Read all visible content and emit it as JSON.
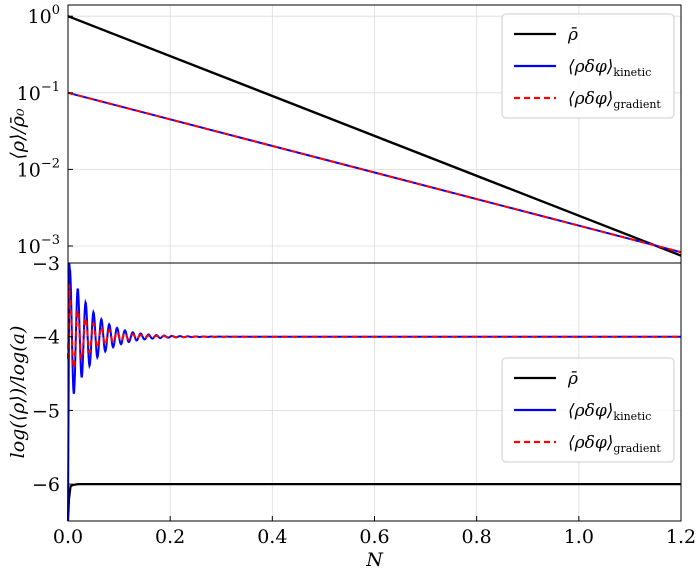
{
  "chart_data": [
    {
      "panel": "top",
      "type": "line",
      "ylabel": "⟨ρ⟩/ρ̄₀",
      "yscale": "log",
      "ylim": [
        0.0006,
        1.4
      ],
      "xlim": [
        0,
        1.2
      ],
      "yticks": [
        {
          "value": 1,
          "base": "10",
          "exp": "0"
        },
        {
          "value": 0.1,
          "base": "10",
          "exp": "−1"
        },
        {
          "value": 0.01,
          "base": "10",
          "exp": "−2"
        },
        {
          "value": 0.001,
          "base": "10",
          "exp": "−3"
        }
      ],
      "grid": true,
      "legend_position": "top-right",
      "series": [
        {
          "name": "ρ̄",
          "legend": {
            "main": "ρ̄",
            "sub": ""
          },
          "color": "#000000",
          "dash": "solid",
          "x": [
            0,
            1.2
          ],
          "y": [
            1.0,
            0.00075
          ]
        },
        {
          "name": "⟨ρδφ⟩kinetic",
          "legend": {
            "main": "⟨ρδφ⟩",
            "sub": "kinetic"
          },
          "color": "#0000ff",
          "dash": "solid",
          "x": [
            0,
            1.2
          ],
          "y": [
            0.1,
            0.00083
          ]
        },
        {
          "name": "⟨ρδφ⟩gradient",
          "legend": {
            "main": "⟨ρδφ⟩",
            "sub": "gradient"
          },
          "color": "#ff0000",
          "dash": "dashed",
          "x": [
            0,
            1.2
          ],
          "y": [
            0.1,
            0.00083
          ]
        }
      ]
    },
    {
      "panel": "bottom",
      "type": "line",
      "ylabel": "log(⟨ρ⟩)/log(a)",
      "xlabel": "N",
      "ylim": [
        -6.5,
        -3
      ],
      "xlim": [
        0,
        1.2
      ],
      "xticks": [
        "0.0",
        "0.2",
        "0.4",
        "0.6",
        "0.8",
        "1.0",
        "1.2"
      ],
      "yticks": [
        "−3",
        "−4",
        "−5",
        "−6"
      ],
      "grid": true,
      "legend_position": "center-right",
      "series": [
        {
          "name": "ρ̄",
          "legend": {
            "main": "ρ̄",
            "sub": ""
          },
          "color": "#000000",
          "dash": "solid",
          "x": [
            0,
            0.002,
            0.005,
            0.01,
            0.02,
            1.2
          ],
          "y": [
            -6.5,
            -6.2,
            -6.03,
            -6.01,
            -6.0,
            -6.0
          ]
        },
        {
          "name": "⟨ρδφ⟩kinetic",
          "legend": {
            "main": "⟨ρδφ⟩",
            "sub": "kinetic"
          },
          "color": "#0000ff",
          "dash": "solid",
          "model": {
            "asymptote": -4.0,
            "amp": 1.0,
            "freq": 130,
            "decay": 22,
            "x_end": 1.2,
            "start": -6.5
          }
        },
        {
          "name": "⟨ρδφ⟩gradient",
          "legend": {
            "main": "⟨ρδφ⟩",
            "sub": "gradient"
          },
          "color": "#ff0000",
          "dash": "dashed",
          "model": {
            "asymptote": -4.0,
            "amp": 0.55,
            "freq": 130,
            "decay": 22,
            "x_end": 1.2,
            "start": -4.3
          }
        }
      ]
    }
  ]
}
